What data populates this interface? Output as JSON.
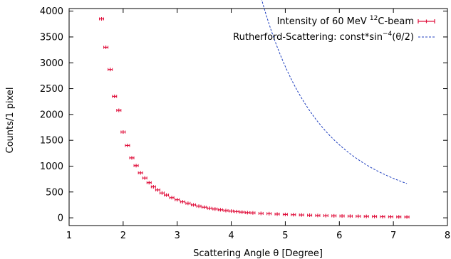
{
  "chart_data": {
    "type": "scatter",
    "xlabel": "Scattering Angle θ [Degree]",
    "ylabel": "Counts/1 pixel",
    "xlim": [
      1,
      8
    ],
    "ylim": [
      -150,
      4050
    ],
    "x_ticks": [
      "1",
      "2",
      "3",
      "4",
      "5",
      "6",
      "7",
      "8"
    ],
    "y_ticks": [
      "0",
      "500",
      "1000",
      "1500",
      "2000",
      "2500",
      "3000",
      "3500",
      "4000"
    ],
    "legend_position": "top-right",
    "grid": false,
    "series": [
      {
        "name": "Intensity of 60 MeV 12C-beam",
        "legend": {
          "prefix": "Intensity of 60 MeV ",
          "sup": "12",
          "suffix": "C-beam"
        },
        "kind": "points-with-errorbars",
        "color": "#e0103c",
        "points": [
          [
            1.6,
            3850
          ],
          [
            1.68,
            3300
          ],
          [
            1.76,
            2870
          ],
          [
            1.84,
            2350
          ],
          [
            1.92,
            2080
          ],
          [
            2.0,
            1660
          ],
          [
            2.08,
            1400
          ],
          [
            2.16,
            1160
          ],
          [
            2.24,
            1010
          ],
          [
            2.32,
            870
          ],
          [
            2.4,
            770
          ],
          [
            2.48,
            680
          ],
          [
            2.56,
            600
          ],
          [
            2.64,
            540
          ],
          [
            2.72,
            480
          ],
          [
            2.8,
            440
          ],
          [
            2.9,
            390
          ],
          [
            3.0,
            350
          ],
          [
            3.1,
            310
          ],
          [
            3.2,
            280
          ],
          [
            3.3,
            250
          ],
          [
            3.4,
            225
          ],
          [
            3.5,
            205
          ],
          [
            3.6,
            185
          ],
          [
            3.7,
            170
          ],
          [
            3.8,
            155
          ],
          [
            3.9,
            140
          ],
          [
            4.0,
            130
          ],
          [
            4.1,
            120
          ],
          [
            4.2,
            110
          ],
          [
            4.3,
            100
          ],
          [
            4.4,
            95
          ],
          [
            4.55,
            85
          ],
          [
            4.7,
            80
          ],
          [
            4.85,
            72
          ],
          [
            5.0,
            65
          ],
          [
            5.15,
            60
          ],
          [
            5.3,
            55
          ],
          [
            5.45,
            50
          ],
          [
            5.6,
            45
          ],
          [
            5.75,
            42
          ],
          [
            5.9,
            38
          ],
          [
            6.05,
            35
          ],
          [
            6.2,
            32
          ],
          [
            6.35,
            30
          ],
          [
            6.5,
            27
          ],
          [
            6.65,
            25
          ],
          [
            6.8,
            22
          ],
          [
            6.95,
            20
          ],
          [
            7.1,
            18
          ],
          [
            7.25,
            16
          ]
        ]
      },
      {
        "name": "Rutherford-Scattering: const*sin−4(θ/2)",
        "legend": {
          "prefix": "Rutherford-Scattering: const*sin",
          "sup": "−4",
          "suffix": "(θ/2)"
        },
        "kind": "dashed-fit-curve",
        "color": "#1f3fbf",
        "x_range": [
          1.6,
          7.25
        ],
        "constant": 0.0106
      }
    ]
  }
}
